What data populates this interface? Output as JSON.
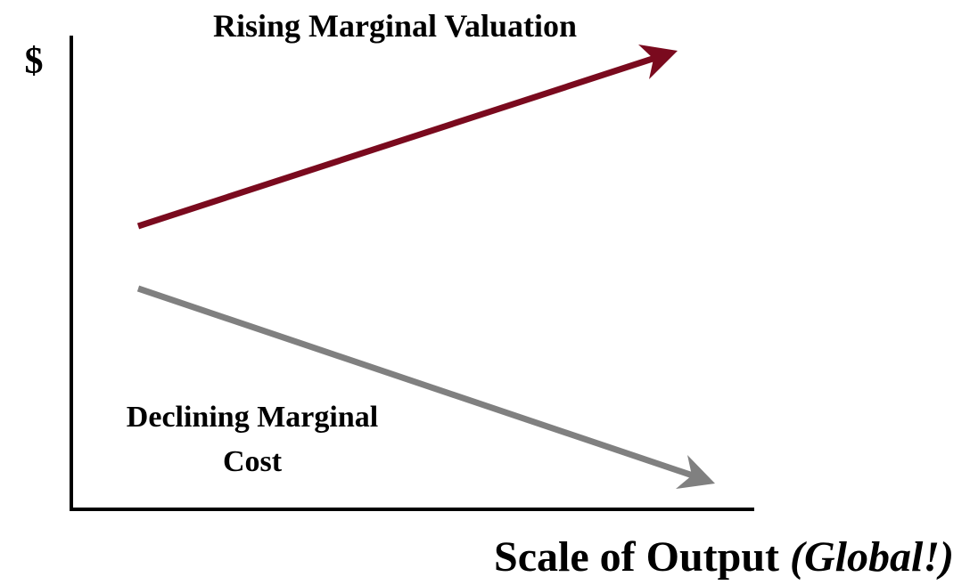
{
  "title": "Rising Marginal Valuation",
  "y_axis_label": "$",
  "lower_label": {
    "lines": [
      "Declining Marginal",
      "Cost"
    ]
  },
  "x_axis_label": {
    "main": "Scale of Output",
    "emphasis": "(Global!)"
  }
}
